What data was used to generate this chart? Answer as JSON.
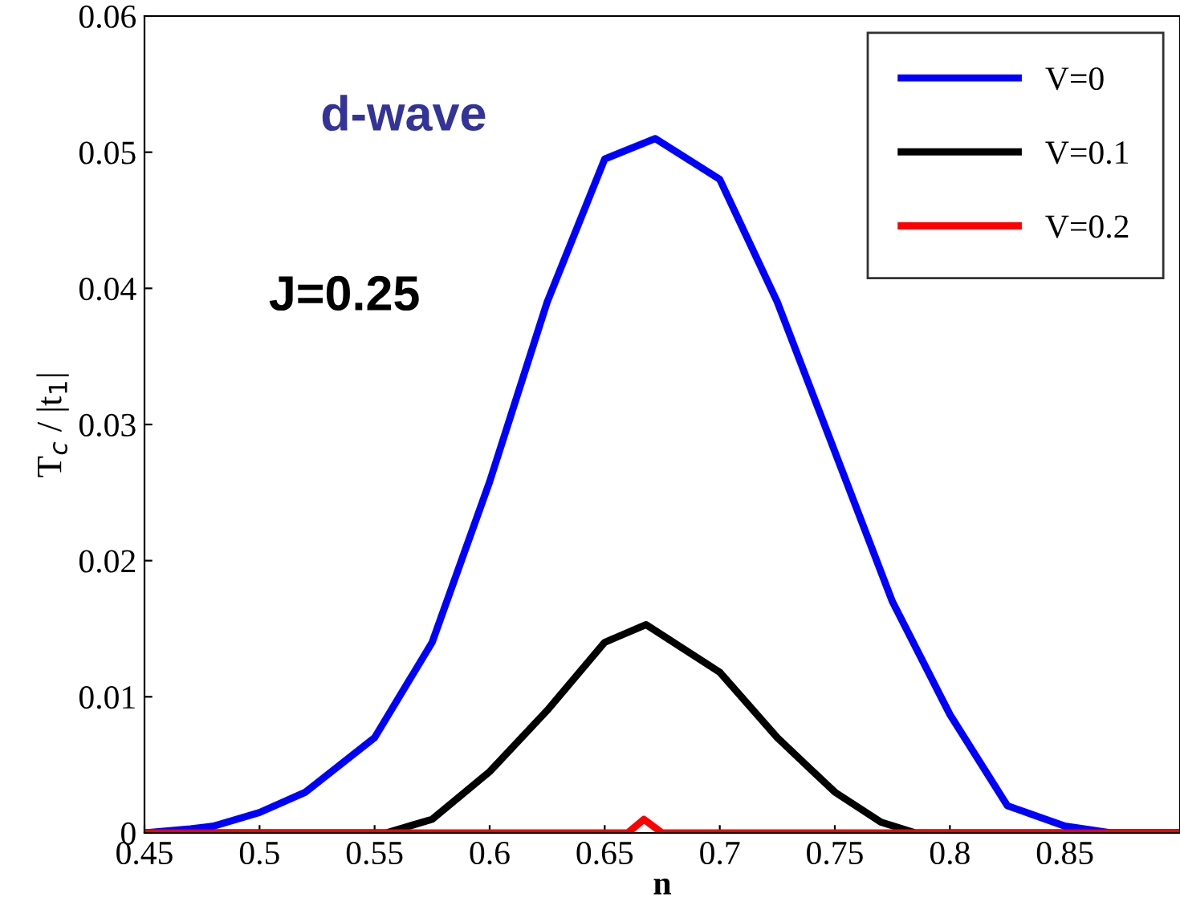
{
  "chart_data": {
    "type": "line",
    "xlabel": "n",
    "ylabel": "T$_{c}$ / |t$_{1}$|",
    "annotations": [
      "d-wave",
      "J=0.25"
    ],
    "xlim": [
      0.45,
      0.9
    ],
    "ylim": [
      0,
      0.06
    ],
    "xticks": [
      0.45,
      0.5,
      0.55,
      0.6,
      0.65,
      0.7,
      0.75,
      0.8,
      0.85
    ],
    "yticks": [
      0,
      0.01,
      0.02,
      0.03,
      0.04,
      0.05,
      0.06
    ],
    "legend": "top right",
    "grid": false,
    "marker": "none",
    "line_style": "solid",
    "series": [
      {
        "name": "V=0",
        "color": "#0000ff",
        "x": [
          0.45,
          0.47,
          0.48,
          0.5,
          0.52,
          0.55,
          0.575,
          0.6,
          0.625,
          0.65,
          0.672,
          0.7,
          0.725,
          0.75,
          0.775,
          0.8,
          0.825,
          0.85,
          0.87,
          0.9
        ],
        "values": [
          0,
          0.0003,
          0.0005,
          0.0015,
          0.003,
          0.007,
          0.014,
          0.0258,
          0.039,
          0.0495,
          0.051,
          0.048,
          0.039,
          0.028,
          0.017,
          0.0087,
          0.002,
          0.0005,
          0,
          0
        ]
      },
      {
        "name": "V=0.1",
        "color": "#000000",
        "x": [
          0.45,
          0.555,
          0.575,
          0.6,
          0.625,
          0.65,
          0.668,
          0.7,
          0.725,
          0.75,
          0.77,
          0.785,
          0.9
        ],
        "values": [
          0,
          0,
          0.001,
          0.0045,
          0.009,
          0.014,
          0.0153,
          0.0118,
          0.007,
          0.003,
          0.0008,
          0,
          0
        ]
      },
      {
        "name": "V=0.2",
        "color": "#ff0000",
        "x": [
          0.45,
          0.66,
          0.667,
          0.675,
          0.9
        ],
        "values": [
          0,
          0,
          0.001,
          0,
          0
        ]
      }
    ]
  }
}
